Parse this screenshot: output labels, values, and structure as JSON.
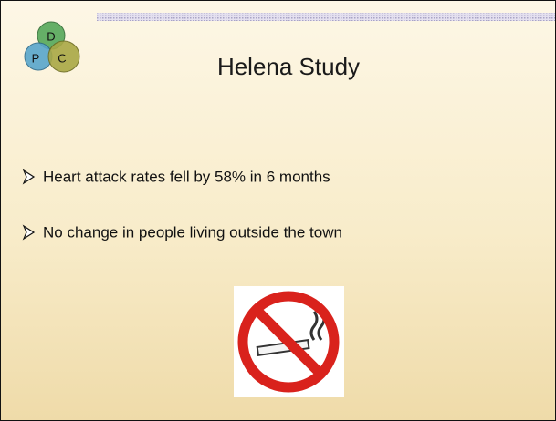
{
  "logo": {
    "letters": [
      "D",
      "P",
      "C"
    ]
  },
  "title": "Helena Study",
  "bullets": [
    "Heart attack rates fell by 58% in 6 months",
    "No change in people living outside the town"
  ]
}
